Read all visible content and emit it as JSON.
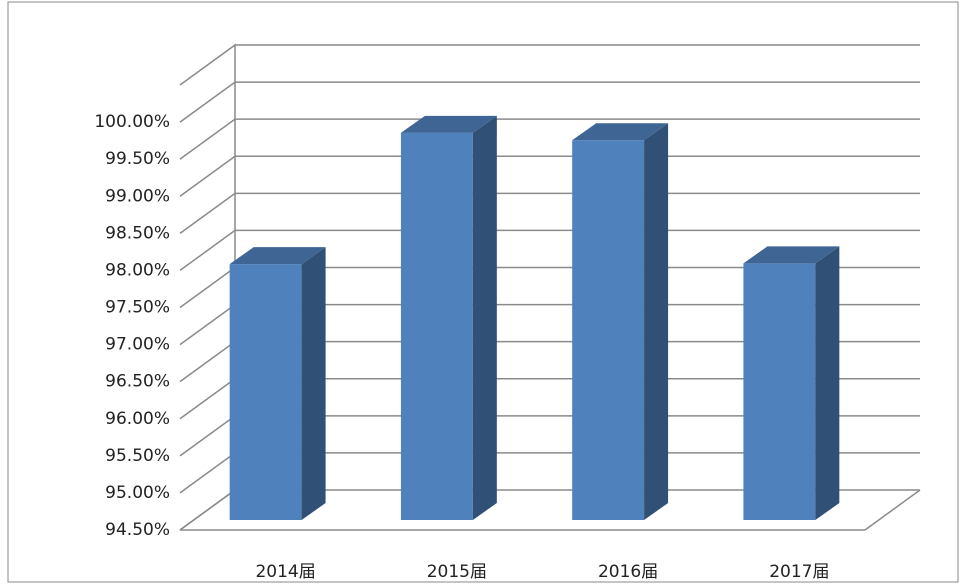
{
  "chart_data": {
    "type": "bar3d",
    "categories": [
      "2014届",
      "2015届",
      "2016届",
      "2017届"
    ],
    "values": [
      97.95,
      99.72,
      99.62,
      97.96
    ],
    "color": "#4f81bd",
    "ylim": [
      94.5,
      100.5
    ],
    "yticks": [
      {
        "value": 94.5,
        "label": "94.50%"
      },
      {
        "value": 95,
        "label": "95.00%"
      },
      {
        "value": 95.5,
        "label": "95.50%"
      },
      {
        "value": 96,
        "label": "96.00%"
      },
      {
        "value": 96.5,
        "label": "96.50%"
      },
      {
        "value": 97,
        "label": "97.00%"
      },
      {
        "value": 97.5,
        "label": "97.50%"
      },
      {
        "value": 98,
        "label": "98.00%"
      },
      {
        "value": 98.5,
        "label": "98.50%"
      },
      {
        "value": 99,
        "label": "99.00%"
      },
      {
        "value": 99.5,
        "label": "99.50%"
      },
      {
        "value": 100,
        "label": "100.00%"
      }
    ],
    "grid": true
  }
}
